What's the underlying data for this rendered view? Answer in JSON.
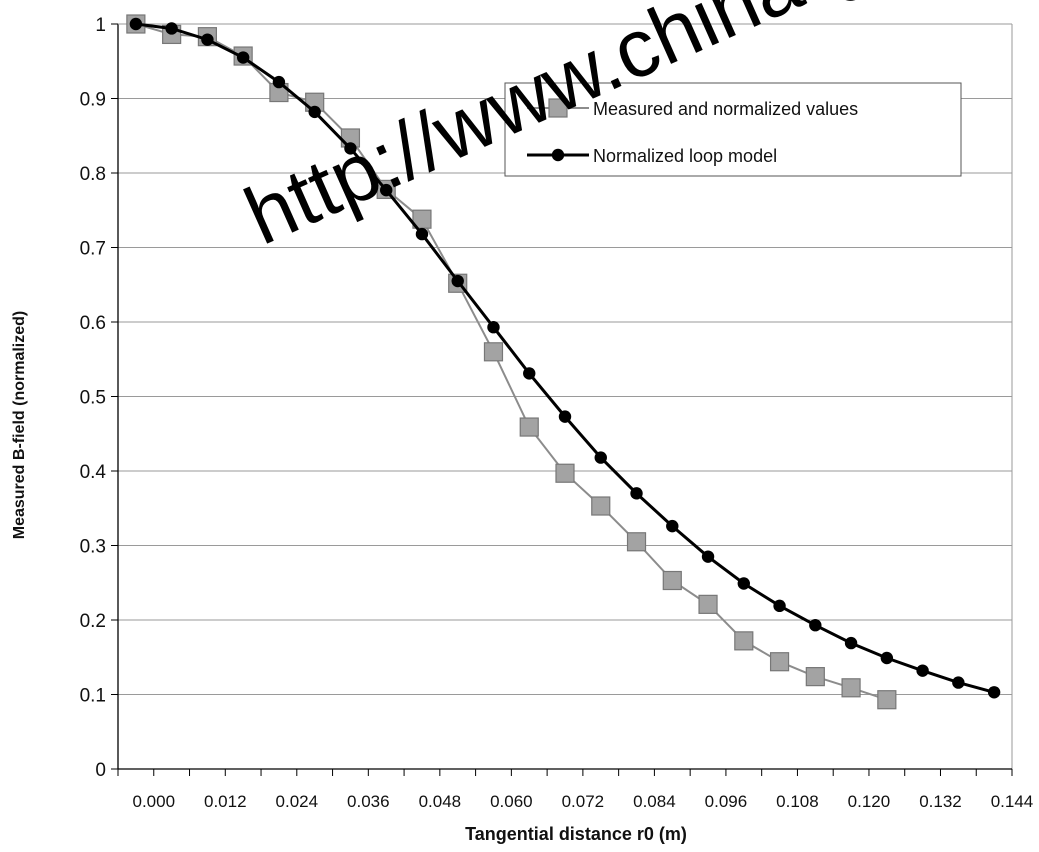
{
  "chart_data": {
    "type": "line",
    "xlabel": "Tangential distance r0 (m)",
    "ylabel": "Measured B-field (normalized)",
    "xlim": [
      -0.006,
      0.144
    ],
    "ylim": [
      0,
      1
    ],
    "x_ticks": [
      "0.000",
      "0.012",
      "0.024",
      "0.036",
      "0.048",
      "0.060",
      "0.072",
      "0.084",
      "0.096",
      "0.108",
      "0.120",
      "0.132",
      "0.144"
    ],
    "y_ticks": [
      "0",
      "0.1",
      "0.2",
      "0.3",
      "0.4",
      "0.5",
      "0.6",
      "0.7",
      "0.8",
      "0.9",
      "1"
    ],
    "grid": "horizontal",
    "legend_position": "top-right",
    "series": [
      {
        "name": "Measured and normalized values",
        "color": "#8c8c8c",
        "marker": "square",
        "points": [
          {
            "x": -0.003,
            "y": 1.0
          },
          {
            "x": 0.003,
            "y": 0.986
          },
          {
            "x": 0.009,
            "y": 0.983
          },
          {
            "x": 0.015,
            "y": 0.957
          },
          {
            "x": 0.021,
            "y": 0.908
          },
          {
            "x": 0.027,
            "y": 0.895
          },
          {
            "x": 0.033,
            "y": 0.847
          },
          {
            "x": 0.039,
            "y": 0.778
          },
          {
            "x": 0.045,
            "y": 0.738
          },
          {
            "x": 0.051,
            "y": 0.652
          },
          {
            "x": 0.057,
            "y": 0.56
          },
          {
            "x": 0.063,
            "y": 0.459
          },
          {
            "x": 0.069,
            "y": 0.397
          },
          {
            "x": 0.075,
            "y": 0.353
          },
          {
            "x": 0.081,
            "y": 0.305
          },
          {
            "x": 0.087,
            "y": 0.253
          },
          {
            "x": 0.093,
            "y": 0.221
          },
          {
            "x": 0.099,
            "y": 0.172
          },
          {
            "x": 0.105,
            "y": 0.144
          },
          {
            "x": 0.111,
            "y": 0.124
          },
          {
            "x": 0.117,
            "y": 0.109
          },
          {
            "x": 0.123,
            "y": 0.093
          }
        ]
      },
      {
        "name": "Normalized loop model",
        "color": "#000000",
        "marker": "circle",
        "points": [
          {
            "x": -0.003,
            "y": 1.0
          },
          {
            "x": 0.003,
            "y": 0.994
          },
          {
            "x": 0.009,
            "y": 0.979
          },
          {
            "x": 0.015,
            "y": 0.955
          },
          {
            "x": 0.021,
            "y": 0.922
          },
          {
            "x": 0.027,
            "y": 0.882
          },
          {
            "x": 0.033,
            "y": 0.833
          },
          {
            "x": 0.039,
            "y": 0.777
          },
          {
            "x": 0.045,
            "y": 0.718
          },
          {
            "x": 0.051,
            "y": 0.655
          },
          {
            "x": 0.057,
            "y": 0.593
          },
          {
            "x": 0.063,
            "y": 0.531
          },
          {
            "x": 0.069,
            "y": 0.473
          },
          {
            "x": 0.075,
            "y": 0.418
          },
          {
            "x": 0.081,
            "y": 0.37
          },
          {
            "x": 0.087,
            "y": 0.326
          },
          {
            "x": 0.093,
            "y": 0.285
          },
          {
            "x": 0.099,
            "y": 0.249
          },
          {
            "x": 0.105,
            "y": 0.219
          },
          {
            "x": 0.111,
            "y": 0.193
          },
          {
            "x": 0.117,
            "y": 0.169
          },
          {
            "x": 0.123,
            "y": 0.149
          },
          {
            "x": 0.129,
            "y": 0.132
          },
          {
            "x": 0.135,
            "y": 0.116
          },
          {
            "x": 0.141,
            "y": 0.103
          }
        ]
      }
    ]
  },
  "watermark": {
    "text": "http://www.china-g"
  }
}
